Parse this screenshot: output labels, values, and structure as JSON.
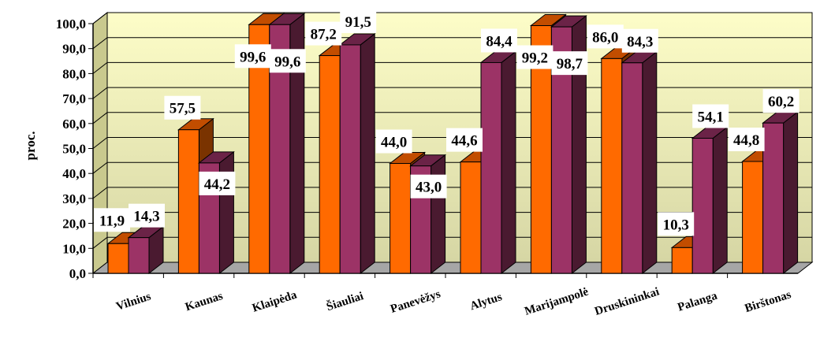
{
  "chart_data": {
    "type": "bar",
    "ylabel": "proc.",
    "ylim": [
      0,
      100
    ],
    "y_ticks": [
      "0,0",
      "10,0",
      "20,0",
      "30,0",
      "40,0",
      "50,0",
      "60,0",
      "70,0",
      "80,0",
      "90,0",
      "100,0"
    ],
    "categories": [
      "Vilnius",
      "Kaunas",
      "Klaipėda",
      "Šiauliai",
      "Panevėžys",
      "Alytus",
      "Marijampolė",
      "Druskininkai",
      "Palanga",
      "Birštonas"
    ],
    "series": [
      {
        "color": "#ff6a00",
        "values": [
          11.9,
          57.5,
          99.6,
          87.2,
          44.0,
          44.6,
          99.2,
          86.0,
          10.3,
          44.8
        ],
        "labels": [
          "11,9",
          "57,5",
          "99,6",
          "87,2",
          "44,0",
          "44,6",
          "99,2",
          "86,0",
          "10,3",
          "44,8"
        ]
      },
      {
        "color": "#9c3366",
        "values": [
          14.3,
          44.2,
          99.6,
          91.5,
          43.0,
          84.4,
          98.7,
          84.3,
          54.1,
          60.2
        ],
        "labels": [
          "14,3",
          "44,2",
          "99,6",
          "91,5",
          "43,0",
          "84,4",
          "98,7",
          "84,3",
          "54,1",
          "60,2"
        ]
      }
    ],
    "grid": true,
    "legend": "none",
    "background_gradient": [
      "#fdfdc8",
      "#d6d6a4"
    ]
  }
}
